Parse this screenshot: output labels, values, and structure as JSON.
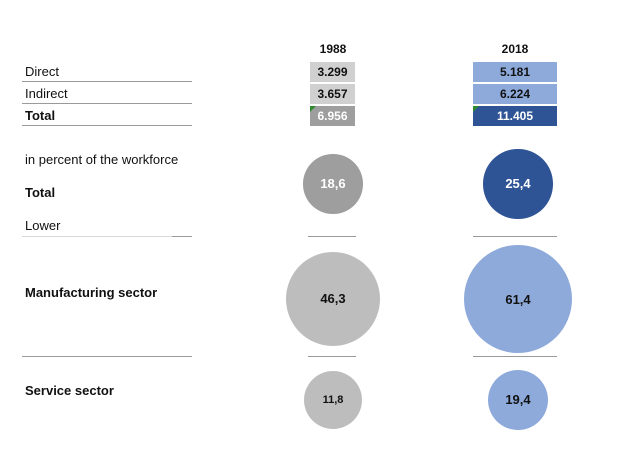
{
  "chart_data": {
    "type": "table",
    "title": "",
    "years": [
      "1988",
      "2018"
    ],
    "employment_table": {
      "row_labels": [
        "Direct",
        "Indirect",
        "Total"
      ],
      "series": [
        {
          "name": "1988",
          "values": [
            "3.299",
            "3.657",
            "6.956"
          ]
        },
        {
          "name": "2018",
          "values": [
            "5.181",
            "6.224",
            "11.405"
          ]
        }
      ]
    },
    "percent_section_label": "in percent of the workforce",
    "bubble_groups": [
      {
        "label": "Total",
        "values": [
          18.6,
          25.4
        ],
        "value_labels": [
          "18,6",
          "25,4"
        ]
      },
      {
        "label": "Manufacturing sector",
        "values": [
          46.3,
          61.4
        ],
        "value_labels": [
          "46,3",
          "61,4"
        ]
      },
      {
        "label": "Service sector",
        "values": [
          11.8,
          19.4
        ],
        "value_labels": [
          "11,8",
          "19,4"
        ]
      }
    ],
    "note": "Lower"
  },
  "colors": {
    "gray_light": "#d0d0d0",
    "gray_mid": "#bdbdbd",
    "gray_total": "#9e9e9e",
    "blue_light": "#8eaadb",
    "blue_dark": "#2f5496"
  }
}
